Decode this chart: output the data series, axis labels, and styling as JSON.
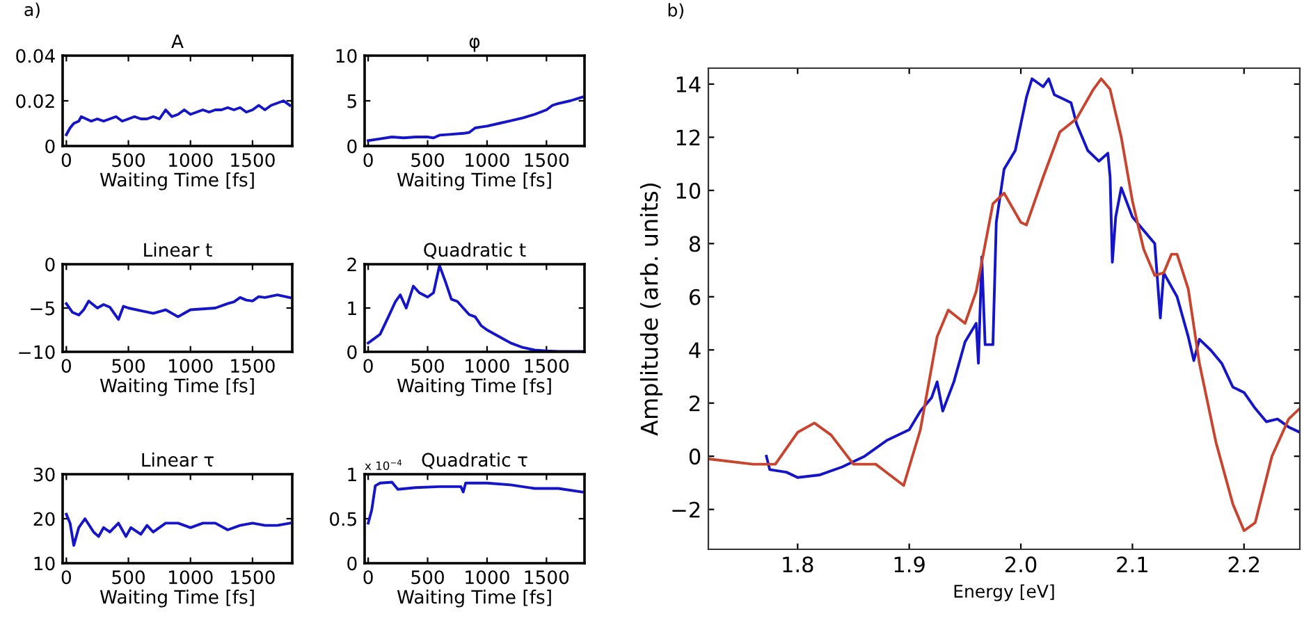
{
  "chart_data": [
    {
      "type": "line",
      "title": "A",
      "xlabel": "Waiting Time [fs]",
      "annotations": [
        "a)"
      ],
      "xlim": [
        -30,
        1820
      ],
      "xticks": [
        0,
        500,
        1000,
        1500
      ],
      "ylim": [
        0,
        0.04
      ],
      "yticks": [
        0,
        0.02,
        0.04
      ],
      "series": [
        {
          "color": "#1414c8",
          "x": [
            0,
            30,
            60,
            100,
            120,
            160,
            200,
            250,
            300,
            350,
            400,
            450,
            500,
            550,
            600,
            650,
            700,
            750,
            800,
            850,
            900,
            950,
            1000,
            1050,
            1100,
            1150,
            1200,
            1250,
            1300,
            1350,
            1400,
            1450,
            1500,
            1550,
            1600,
            1650,
            1700,
            1750,
            1800
          ],
          "values": [
            0.005,
            0.008,
            0.01,
            0.011,
            0.013,
            0.012,
            0.011,
            0.012,
            0.011,
            0.012,
            0.013,
            0.011,
            0.012,
            0.013,
            0.012,
            0.012,
            0.013,
            0.012,
            0.016,
            0.013,
            0.014,
            0.016,
            0.014,
            0.015,
            0.016,
            0.015,
            0.016,
            0.016,
            0.017,
            0.016,
            0.017,
            0.015,
            0.016,
            0.018,
            0.016,
            0.018,
            0.019,
            0.02,
            0.018
          ]
        }
      ]
    },
    {
      "type": "line",
      "title": "φ",
      "xlabel": "Waiting Time [fs]",
      "xlim": [
        -30,
        1820
      ],
      "xticks": [
        0,
        500,
        1000,
        1500
      ],
      "ylim": [
        0,
        10
      ],
      "yticks": [
        0,
        5,
        10
      ],
      "series": [
        {
          "color": "#1414c8",
          "x": [
            0,
            100,
            200,
            300,
            400,
            500,
            550,
            600,
            700,
            800,
            850,
            900,
            950,
            1000,
            1100,
            1200,
            1300,
            1400,
            1500,
            1550,
            1600,
            1700,
            1800
          ],
          "values": [
            0.6,
            0.8,
            1.0,
            0.9,
            1.0,
            1.0,
            0.9,
            1.2,
            1.3,
            1.4,
            1.5,
            2.0,
            2.1,
            2.2,
            2.5,
            2.8,
            3.1,
            3.5,
            4.0,
            4.5,
            4.7,
            5.0,
            5.4
          ]
        }
      ]
    },
    {
      "type": "line",
      "title": "Linear t",
      "xlabel": "Waiting Time [fs]",
      "xlim": [
        -30,
        1820
      ],
      "xticks": [
        0,
        500,
        1000,
        1500
      ],
      "ylim": [
        -10,
        0
      ],
      "yticks": [
        -10,
        -5,
        0
      ],
      "series": [
        {
          "color": "#1414c8",
          "x": [
            0,
            50,
            100,
            140,
            180,
            250,
            300,
            350,
            420,
            460,
            500,
            600,
            700,
            800,
            900,
            950,
            1000,
            1100,
            1200,
            1300,
            1350,
            1400,
            1450,
            1500,
            1550,
            1600,
            1700,
            1800
          ],
          "values": [
            -4.5,
            -5.5,
            -5.8,
            -5.2,
            -4.2,
            -5.0,
            -4.6,
            -4.9,
            -6.3,
            -4.8,
            -5.0,
            -5.3,
            -5.6,
            -5.2,
            -6.0,
            -5.6,
            -5.2,
            -5.1,
            -5.0,
            -4.5,
            -4.3,
            -3.8,
            -4.1,
            -4.2,
            -3.7,
            -3.8,
            -3.5,
            -3.8
          ]
        }
      ]
    },
    {
      "type": "line",
      "title": "Quadratic t",
      "xlabel": "Waiting Time [fs]",
      "xlim": [
        -30,
        1820
      ],
      "xticks": [
        0,
        500,
        1000,
        1500
      ],
      "ylim": [
        0,
        2
      ],
      "yticks": [
        0,
        1,
        2
      ],
      "series": [
        {
          "color": "#1414c8",
          "x": [
            0,
            50,
            100,
            170,
            230,
            270,
            320,
            380,
            430,
            500,
            550,
            600,
            650,
            700,
            750,
            800,
            850,
            900,
            950,
            1000,
            1100,
            1200,
            1300,
            1400,
            1500,
            1600,
            1700,
            1800
          ],
          "values": [
            0.2,
            0.3,
            0.4,
            0.8,
            1.15,
            1.3,
            1.0,
            1.5,
            1.35,
            1.25,
            1.35,
            1.97,
            1.6,
            1.2,
            1.15,
            1.0,
            0.85,
            0.8,
            0.6,
            0.5,
            0.35,
            0.2,
            0.1,
            0.04,
            0.02,
            0.01,
            0.01,
            0.01
          ]
        }
      ]
    },
    {
      "type": "line",
      "title": "Linear τ",
      "xlabel": "Waiting Time [fs]",
      "xlim": [
        -30,
        1820
      ],
      "xticks": [
        0,
        500,
        1000,
        1500
      ],
      "ylim": [
        10,
        30
      ],
      "yticks": [
        10,
        20,
        30
      ],
      "series": [
        {
          "color": "#1414c8",
          "x": [
            0,
            30,
            60,
            100,
            150,
            220,
            260,
            300,
            350,
            420,
            480,
            520,
            600,
            650,
            700,
            800,
            900,
            1000,
            1100,
            1200,
            1300,
            1400,
            1500,
            1600,
            1700,
            1800
          ],
          "values": [
            21,
            19,
            14,
            18,
            20,
            17,
            16,
            18,
            17,
            19,
            16,
            18,
            16.5,
            18.5,
            17,
            19,
            19,
            18,
            19,
            19,
            17.5,
            18.5,
            19,
            18.5,
            18.5,
            19
          ]
        }
      ]
    },
    {
      "type": "line",
      "title": "Quadratic τ",
      "xlabel": "Waiting Time [fs]",
      "annotations": [
        "x 10$^{−4}$"
      ],
      "xlim": [
        -30,
        1820
      ],
      "xticks": [
        0,
        500,
        1000,
        1500
      ],
      "ylim": [
        0,
        1
      ],
      "yticks": [
        0,
        0.5,
        1
      ],
      "series": [
        {
          "color": "#1414c8",
          "x": [
            0,
            30,
            60,
            100,
            200,
            250,
            400,
            600,
            780,
            800,
            820,
            1000,
            1200,
            1400,
            1600,
            1800
          ],
          "values": [
            0.45,
            0.6,
            0.87,
            0.9,
            0.91,
            0.83,
            0.85,
            0.86,
            0.86,
            0.8,
            0.9,
            0.9,
            0.88,
            0.84,
            0.84,
            0.8
          ]
        }
      ]
    },
    {
      "type": "line",
      "xlabel": "Energy [eV]",
      "ylabel": "Amplitude (arb. units)",
      "annotations": [
        "b)"
      ],
      "xlim": [
        1.72,
        2.25
      ],
      "xticks": [
        1.8,
        1.9,
        {
          "value": 2,
          "label": "2.0"
        },
        2.1,
        2.2
      ],
      "ylim": [
        -3.5,
        14.6
      ],
      "yticks": [
        -2,
        0,
        2,
        4,
        6,
        8,
        10,
        12,
        14
      ],
      "series": [
        {
          "color": "#1414c8",
          "x": [
            1.772,
            1.775,
            1.79,
            1.8,
            1.82,
            1.84,
            1.86,
            1.88,
            1.9,
            1.91,
            1.92,
            1.925,
            1.93,
            1.94,
            1.95,
            1.96,
            1.962,
            1.965,
            1.968,
            1.975,
            1.978,
            1.985,
            1.995,
            2.005,
            2.01,
            2.02,
            2.025,
            2.03,
            2.045,
            2.05,
            2.06,
            2.07,
            2.078,
            2.08,
            2.082,
            2.085,
            2.09,
            2.1,
            2.11,
            2.12,
            2.125,
            2.128,
            2.14,
            2.15,
            2.155,
            2.16,
            2.17,
            2.18,
            2.19,
            2.2,
            2.21,
            2.22,
            2.23,
            2.24,
            2.25
          ],
          "values": [
            0,
            -0.5,
            -0.6,
            -0.8,
            -0.7,
            -0.4,
            0.0,
            0.6,
            1.0,
            1.7,
            2.2,
            2.8,
            1.7,
            2.8,
            4.3,
            5.0,
            3.5,
            7.5,
            4.2,
            4.2,
            8.8,
            10.8,
            11.5,
            13.5,
            14.2,
            13.9,
            14.2,
            13.6,
            13.3,
            12.5,
            11.5,
            11.1,
            11.4,
            10.5,
            7.3,
            9.0,
            10.1,
            9.0,
            8.5,
            8.0,
            5.2,
            6.9,
            6.0,
            4.5,
            3.6,
            4.4,
            4.0,
            3.5,
            2.6,
            2.4,
            1.8,
            1.3,
            1.4,
            1.1,
            0.9
          ]
        },
        {
          "color": "#c8442e",
          "x": [
            1.72,
            1.76,
            1.78,
            1.8,
            1.815,
            1.83,
            1.85,
            1.87,
            1.895,
            1.91,
            1.925,
            1.935,
            1.95,
            1.96,
            1.975,
            1.985,
            2.0,
            2.005,
            2.02,
            2.035,
            2.05,
            2.065,
            2.072,
            2.08,
            2.09,
            2.1,
            2.11,
            2.12,
            2.128,
            2.135,
            2.14,
            2.15,
            2.16,
            2.175,
            2.19,
            2.2,
            2.21,
            2.225,
            2.24,
            2.25
          ],
          "values": [
            -0.1,
            -0.3,
            -0.3,
            0.9,
            1.25,
            0.8,
            -0.3,
            -0.3,
            -1.1,
            1.0,
            4.5,
            5.5,
            5.0,
            6.2,
            9.5,
            9.9,
            8.8,
            8.7,
            10.5,
            12.2,
            12.7,
            13.8,
            14.2,
            13.8,
            12.0,
            9.6,
            7.8,
            6.8,
            6.9,
            7.6,
            7.6,
            6.3,
            3.5,
            0.5,
            -1.8,
            -2.8,
            -2.5,
            0.0,
            1.4,
            1.8
          ]
        }
      ]
    }
  ]
}
